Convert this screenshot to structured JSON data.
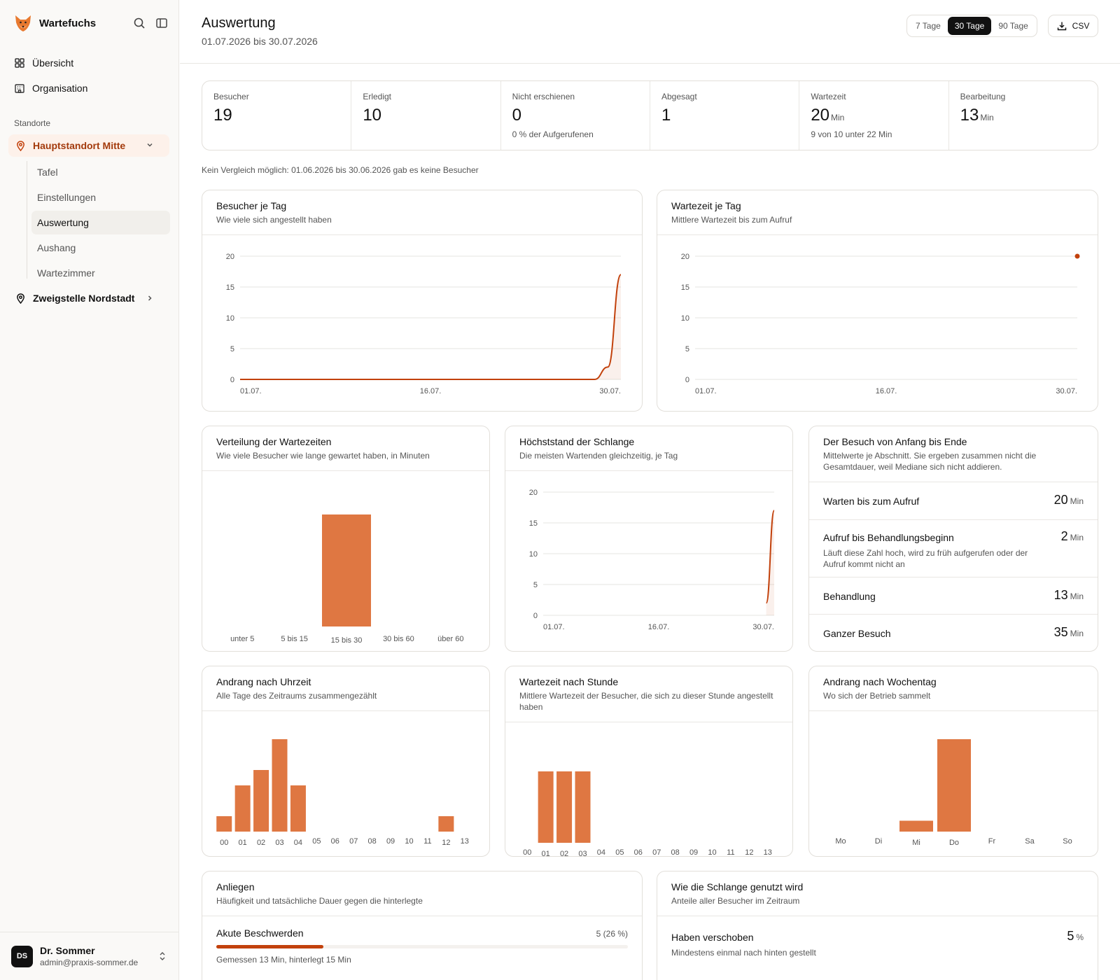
{
  "sidebar": {
    "brand": "Wartefuchs",
    "nav": [
      {
        "label": "Übersicht"
      },
      {
        "label": "Organisation"
      }
    ],
    "section_label": "Standorte",
    "location_active": "Hauptstandort Mitte",
    "sub_items": [
      "Tafel",
      "Einstellungen",
      "Auswertung",
      "Aushang",
      "Wartezimmer"
    ],
    "active_sub": "Auswertung",
    "location_other": "Zweigstelle Nordstadt",
    "user": {
      "initials": "DS",
      "name": "Dr. Sommer",
      "email": "admin@praxis-sommer.de"
    }
  },
  "header": {
    "title": "Auswertung",
    "range": "01.07.2026 bis 30.07.2026",
    "periods": [
      "7 Tage",
      "30 Tage",
      "90 Tage"
    ],
    "active_period": "30 Tage",
    "csv_label": "CSV"
  },
  "kpis": [
    {
      "label": "Besucher",
      "value": "19",
      "unit": "",
      "sub": ""
    },
    {
      "label": "Erledigt",
      "value": "10",
      "unit": "",
      "sub": ""
    },
    {
      "label": "Nicht erschienen",
      "value": "0",
      "unit": "",
      "sub": "0 % der Aufgerufenen"
    },
    {
      "label": "Abgesagt",
      "value": "1",
      "unit": "",
      "sub": ""
    },
    {
      "label": "Wartezeit",
      "value": "20",
      "unit": "Min",
      "sub": "9 von 10 unter 22 Min"
    },
    {
      "label": "Bearbeitung",
      "value": "13",
      "unit": "Min",
      "sub": ""
    }
  ],
  "comparison_note": "Kein Vergleich möglich: 01.06.2026 bis 30.06.2026 gab es keine Besucher",
  "accent_color": "#c2410c",
  "bar_color": "#df7742",
  "cards": {
    "visitors": {
      "title": "Besucher je Tag",
      "sub": "Wie viele sich angestellt haben"
    },
    "wait": {
      "title": "Wartezeit je Tag",
      "sub": "Mittlere Wartezeit bis zum Aufruf"
    },
    "dist": {
      "title": "Verteilung der Wartezeiten",
      "sub": "Wie viele Besucher wie lange gewartet haben, in Minuten"
    },
    "peak": {
      "title": "Höchststand der Schlange",
      "sub": "Die meisten Wartenden gleichzeitig, je Tag"
    },
    "journey": {
      "title": "Der Besuch von Anfang bis Ende",
      "sub": "Mittelwerte je Abschnitt. Sie ergeben zusammen nicht die Gesamtdauer, weil Mediane sich nicht addieren."
    },
    "hour": {
      "title": "Andrang nach Uhrzeit",
      "sub": "Alle Tage des Zeitraums zusammengezählt"
    },
    "hourwait": {
      "title": "Wartezeit nach Stunde",
      "sub": "Mittlere Wartezeit der Besucher, die sich zu dieser Stunde angestellt haben"
    },
    "weekday": {
      "title": "Andrang nach Wochentag",
      "sub": "Wo sich der Betrieb sammelt"
    },
    "concerns": {
      "title": "Anliegen",
      "sub": "Häufigkeit und tatsächliche Dauer gegen die hinterlegte"
    },
    "usage": {
      "title": "Wie die Schlange genutzt wird",
      "sub": "Anteile aller Besucher im Zeitraum"
    }
  },
  "journey_rows": [
    {
      "label": "Warten bis zum Aufruf",
      "value": "20",
      "unit": "Min",
      "sub": ""
    },
    {
      "label": "Aufruf bis Behandlungsbeginn",
      "value": "2",
      "unit": "Min",
      "sub": "Läuft diese Zahl hoch, wird zu früh aufgerufen oder der Aufruf kommt nicht an"
    },
    {
      "label": "Behandlung",
      "value": "13",
      "unit": "Min",
      "sub": ""
    },
    {
      "label": "Ganzer Besuch",
      "value": "35",
      "unit": "Min",
      "sub": ""
    }
  ],
  "concern_rows": [
    {
      "label": "Akute Beschwerden",
      "count": "5 (26 %)",
      "share": 0.26,
      "sub": "Gemessen 13 Min, hinterlegt 15 Min"
    }
  ],
  "usage_rows": [
    {
      "label": "Haben verschoben",
      "value": "5",
      "unit": "%",
      "sub": "Mindestens einmal nach hinten gestellt"
    }
  ],
  "chart_data": [
    {
      "type": "line",
      "id": "visitors",
      "x_ticks": [
        "01.07.",
        "16.07.",
        "30.07."
      ],
      "y_ticks": [
        0,
        5,
        10,
        15,
        20
      ],
      "ylim": [
        0,
        20
      ],
      "x_count": 30,
      "series": [
        {
          "values": [
            0,
            0,
            0,
            0,
            0,
            0,
            0,
            0,
            0,
            0,
            0,
            0,
            0,
            0,
            0,
            0,
            0,
            0,
            0,
            0,
            0,
            0,
            0,
            0,
            0,
            0,
            0,
            0,
            2,
            17
          ]
        }
      ]
    },
    {
      "type": "scatter",
      "id": "wait",
      "x_ticks": [
        "01.07.",
        "16.07.",
        "30.07."
      ],
      "y_ticks": [
        0,
        5,
        10,
        15,
        20
      ],
      "ylim": [
        0,
        20
      ],
      "x_count": 30,
      "points": [
        {
          "x": 30,
          "y": 20
        }
      ]
    },
    {
      "type": "bar",
      "id": "dist",
      "categories": [
        "unter 5",
        "5 bis 15",
        "15 bis 30",
        "30 bis 60",
        "über 60"
      ],
      "values": [
        0,
        0,
        9,
        0,
        0
      ]
    },
    {
      "type": "line",
      "id": "peak",
      "x_ticks": [
        "01.07.",
        "16.07.",
        "30.07."
      ],
      "y_ticks": [
        0,
        5,
        10,
        15,
        20
      ],
      "ylim": [
        0,
        20
      ],
      "x_count": 30,
      "series": [
        {
          "values": [
            null,
            null,
            null,
            null,
            null,
            null,
            null,
            null,
            null,
            null,
            null,
            null,
            null,
            null,
            null,
            null,
            null,
            null,
            null,
            null,
            null,
            null,
            null,
            null,
            null,
            null,
            null,
            null,
            2,
            17
          ]
        }
      ]
    },
    {
      "type": "bar",
      "id": "hour",
      "categories": [
        "00",
        "01",
        "02",
        "03",
        "04",
        "05",
        "06",
        "07",
        "08",
        "09",
        "10",
        "11",
        "12",
        "13"
      ],
      "values": [
        1,
        3,
        4,
        6,
        3,
        0,
        0,
        0,
        0,
        0,
        0,
        0,
        1,
        0
      ]
    },
    {
      "type": "bar",
      "id": "hourwait",
      "categories": [
        "00",
        "01",
        "02",
        "03",
        "04",
        "05",
        "06",
        "07",
        "08",
        "09",
        "10",
        "11",
        "12",
        "13"
      ],
      "values": [
        0,
        20,
        20,
        20,
        0,
        0,
        0,
        0,
        0,
        0,
        0,
        0,
        0,
        0
      ]
    },
    {
      "type": "bar",
      "id": "weekday",
      "categories": [
        "Mo",
        "Di",
        "Mi",
        "Do",
        "Fr",
        "Sa",
        "So"
      ],
      "values": [
        0,
        0,
        2,
        17,
        0,
        0,
        0
      ]
    }
  ]
}
